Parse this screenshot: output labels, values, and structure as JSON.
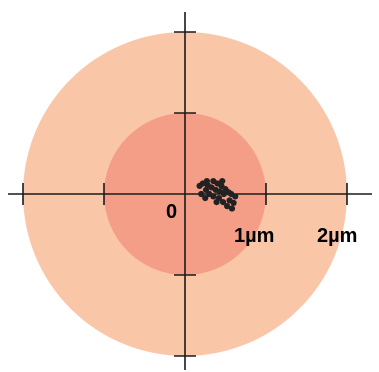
{
  "chart_data": {
    "type": "scatter",
    "title": "",
    "xlabel": "",
    "ylabel": "",
    "units": "µm",
    "xlim": [
      -2.2,
      2.2
    ],
    "ylim": [
      -2.1,
      2.1
    ],
    "grid": false,
    "origin_label": "0",
    "tick_labels": [
      "1µm",
      "2µm"
    ],
    "rings": [
      {
        "radius": 2,
        "color": "#f9c6a8"
      },
      {
        "radius": 1,
        "color": "#f49e87"
      }
    ],
    "point_color": "#222222",
    "points": [
      {
        "x": 0.18,
        "y": 0.1
      },
      {
        "x": 0.2,
        "y": 0.0
      },
      {
        "x": 0.22,
        "y": 0.13
      },
      {
        "x": 0.26,
        "y": 0.05
      },
      {
        "x": 0.25,
        "y": -0.05
      },
      {
        "x": 0.28,
        "y": 0.11
      },
      {
        "x": 0.3,
        "y": 0.0
      },
      {
        "x": 0.33,
        "y": 0.08
      },
      {
        "x": 0.35,
        "y": -0.03
      },
      {
        "x": 0.35,
        "y": 0.16
      },
      {
        "x": 0.38,
        "y": 0.05
      },
      {
        "x": 0.4,
        "y": 0.13
      },
      {
        "x": 0.42,
        "y": -0.05
      },
      {
        "x": 0.43,
        "y": 0.03
      },
      {
        "x": 0.45,
        "y": 0.1
      },
      {
        "x": 0.47,
        "y": -0.1
      },
      {
        "x": 0.48,
        "y": 0.0
      },
      {
        "x": 0.5,
        "y": 0.06
      },
      {
        "x": 0.52,
        "y": -0.15
      },
      {
        "x": 0.55,
        "y": -0.08
      },
      {
        "x": 0.57,
        "y": 0.0
      },
      {
        "x": 0.58,
        "y": -0.18
      },
      {
        "x": 0.6,
        "y": -0.11
      },
      {
        "x": 0.62,
        "y": -0.03
      },
      {
        "x": 0.27,
        "y": 0.16
      },
      {
        "x": 0.39,
        "y": -0.1
      },
      {
        "x": 0.46,
        "y": 0.16
      },
      {
        "x": 0.54,
        "y": 0.02
      }
    ]
  }
}
